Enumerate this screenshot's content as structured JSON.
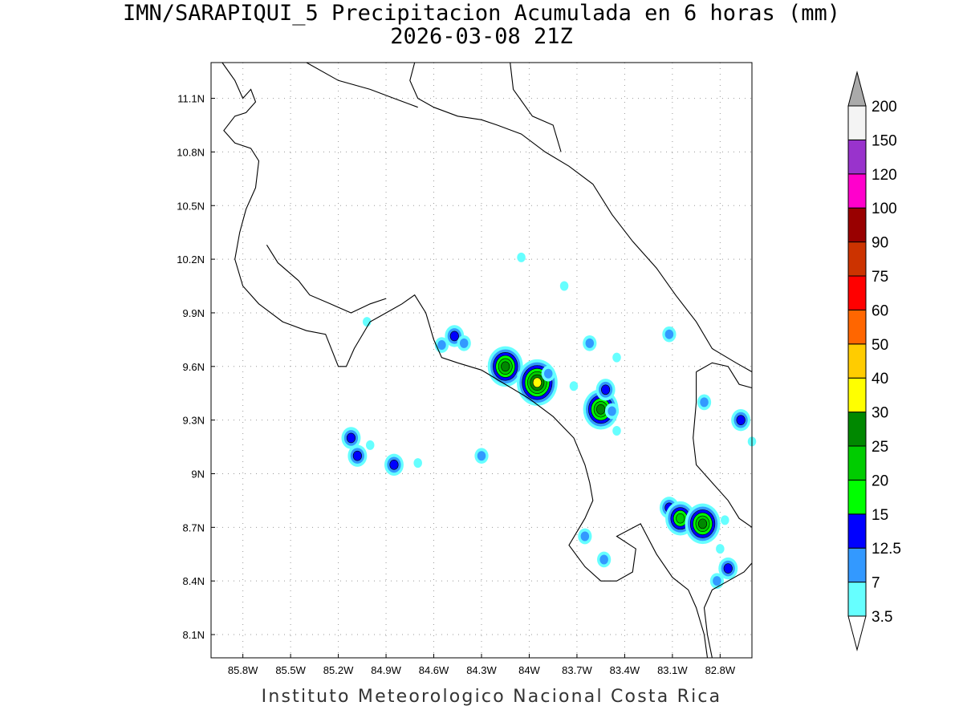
{
  "title": {
    "line1": "IMN/SARAPIQUI_5 Precipitacion Acumulada en 6 horas (mm)",
    "line2": "2026-03-08 21Z"
  },
  "footer": "Instituto Meteorologico Nacional Costa Rica",
  "map": {
    "lon_range": [
      -86.0,
      -82.6
    ],
    "lat_range": [
      7.97,
      11.3
    ],
    "lon_ticks": [
      {
        "v": -85.8,
        "label": "85.8W"
      },
      {
        "v": -85.5,
        "label": "85.5W"
      },
      {
        "v": -85.2,
        "label": "85.2W"
      },
      {
        "v": -84.9,
        "label": "84.9W"
      },
      {
        "v": -84.6,
        "label": "84.6W"
      },
      {
        "v": -84.3,
        "label": "84.3W"
      },
      {
        "v": -84.0,
        "label": "84W"
      },
      {
        "v": -83.7,
        "label": "83.7W"
      },
      {
        "v": -83.4,
        "label": "83.4W"
      },
      {
        "v": -83.1,
        "label": "83.1W"
      },
      {
        "v": -82.8,
        "label": "82.8W"
      }
    ],
    "lat_ticks": [
      {
        "v": 11.1,
        "label": "11.1N"
      },
      {
        "v": 10.8,
        "label": "10.8N"
      },
      {
        "v": 10.5,
        "label": "10.5N"
      },
      {
        "v": 10.2,
        "label": "10.2N"
      },
      {
        "v": 9.9,
        "label": "9.9N"
      },
      {
        "v": 9.6,
        "label": "9.6N"
      },
      {
        "v": 9.3,
        "label": "9.3N"
      },
      {
        "v": 9.0,
        "label": "9N"
      },
      {
        "v": 8.7,
        "label": "8.7N"
      },
      {
        "v": 8.4,
        "label": "8.4N"
      },
      {
        "v": 8.1,
        "label": "8.1N"
      }
    ],
    "grid": "dotted",
    "coastline_color": "#000000",
    "coastlines": [
      [
        [
          -85.93,
          11.3
        ],
        [
          -85.85,
          11.2
        ],
        [
          -85.8,
          11.1
        ],
        [
          -85.75,
          11.15
        ],
        [
          -85.72,
          11.08
        ],
        [
          -85.78,
          11.02
        ],
        [
          -85.85,
          11.0
        ],
        [
          -85.92,
          10.92
        ],
        [
          -85.85,
          10.85
        ],
        [
          -85.75,
          10.82
        ],
        [
          -85.7,
          10.75
        ],
        [
          -85.72,
          10.6
        ],
        [
          -85.78,
          10.48
        ],
        [
          -85.82,
          10.35
        ],
        [
          -85.85,
          10.2
        ],
        [
          -85.8,
          10.05
        ],
        [
          -85.7,
          9.95
        ],
        [
          -85.55,
          9.85
        ],
        [
          -85.4,
          9.8
        ],
        [
          -85.28,
          9.78
        ],
        [
          -85.2,
          9.6
        ],
        [
          -85.15,
          9.6
        ],
        [
          -85.1,
          9.7
        ],
        [
          -85.0,
          9.85
        ],
        [
          -84.9,
          9.9
        ],
        [
          -84.8,
          9.95
        ],
        [
          -84.72,
          10.0
        ],
        [
          -84.65,
          9.9
        ],
        [
          -84.6,
          9.75
        ],
        [
          -84.55,
          9.65
        ],
        [
          -84.45,
          9.62
        ],
        [
          -84.3,
          9.58
        ],
        [
          -84.15,
          9.5
        ],
        [
          -84.0,
          9.42
        ],
        [
          -83.85,
          9.32
        ],
        [
          -83.72,
          9.2
        ],
        [
          -83.65,
          9.05
        ],
        [
          -83.62,
          8.95
        ],
        [
          -83.6,
          8.85
        ],
        [
          -83.65,
          8.75
        ],
        [
          -83.75,
          8.6
        ],
        [
          -83.65,
          8.48
        ],
        [
          -83.55,
          8.4
        ],
        [
          -83.45,
          8.4
        ],
        [
          -83.35,
          8.45
        ],
        [
          -83.33,
          8.58
        ],
        [
          -83.45,
          8.65
        ],
        [
          -83.3,
          8.72
        ],
        [
          -83.2,
          8.55
        ],
        [
          -83.1,
          8.42
        ],
        [
          -83.0,
          8.35
        ],
        [
          -82.95,
          8.25
        ],
        [
          -82.9,
          8.1
        ],
        [
          -82.88,
          7.97
        ]
      ],
      [
        [
          -82.85,
          7.97
        ],
        [
          -82.88,
          8.1
        ],
        [
          -82.9,
          8.25
        ],
        [
          -82.85,
          8.35
        ],
        [
          -82.75,
          8.4
        ],
        [
          -82.65,
          8.45
        ],
        [
          -82.6,
          8.5
        ]
      ],
      [
        [
          -85.65,
          10.28
        ],
        [
          -85.58,
          10.18
        ],
        [
          -85.45,
          10.08
        ],
        [
          -85.38,
          10.0
        ],
        [
          -85.25,
          9.95
        ],
        [
          -85.12,
          9.9
        ],
        [
          -85.0,
          9.95
        ],
        [
          -84.9,
          9.98
        ]
      ],
      [
        [
          -84.72,
          11.3
        ],
        [
          -84.75,
          11.2
        ],
        [
          -84.7,
          11.1
        ],
        [
          -84.6,
          11.05
        ],
        [
          -84.45,
          11.0
        ],
        [
          -84.3,
          10.98
        ],
        [
          -84.2,
          10.95
        ],
        [
          -84.05,
          10.9
        ],
        [
          -83.9,
          10.8
        ],
        [
          -83.75,
          10.72
        ],
        [
          -83.6,
          10.62
        ],
        [
          -83.48,
          10.45
        ],
        [
          -83.35,
          10.3
        ],
        [
          -83.2,
          10.15
        ],
        [
          -83.08,
          10.0
        ],
        [
          -82.95,
          9.85
        ],
        [
          -82.85,
          9.7
        ],
        [
          -82.7,
          9.62
        ],
        [
          -82.6,
          9.57
        ]
      ],
      [
        [
          -84.12,
          11.3
        ],
        [
          -84.1,
          11.15
        ],
        [
          -83.98,
          11.0
        ],
        [
          -83.85,
          10.95
        ],
        [
          -83.8,
          10.8
        ]
      ],
      [
        [
          -85.4,
          11.3
        ],
        [
          -85.2,
          11.2
        ],
        [
          -85.0,
          11.15
        ],
        [
          -84.85,
          11.1
        ],
        [
          -84.7,
          11.05
        ]
      ],
      [
        [
          -82.95,
          9.57
        ],
        [
          -82.85,
          9.62
        ],
        [
          -82.75,
          9.6
        ],
        [
          -82.68,
          9.5
        ],
        [
          -82.6,
          9.48
        ]
      ],
      [
        [
          -82.95,
          9.57
        ],
        [
          -82.95,
          9.4
        ],
        [
          -82.97,
          9.2
        ],
        [
          -82.95,
          9.05
        ],
        [
          -82.85,
          8.95
        ],
        [
          -82.75,
          8.85
        ],
        [
          -82.68,
          8.75
        ],
        [
          -82.6,
          8.7
        ]
      ]
    ],
    "colorbar": {
      "levels": [
        "3.5",
        "7",
        "12.5",
        "15",
        "20",
        "25",
        "30",
        "40",
        "50",
        "60",
        "75",
        "90",
        "100",
        "120",
        "150",
        "200"
      ],
      "colors": [
        "#66ffff",
        "#3399ff",
        "#0000ff",
        "#00ff00",
        "#00cc00",
        "#008800",
        "#ffff00",
        "#ffcc00",
        "#ff6600",
        "#ff0000",
        "#cc3300",
        "#990000",
        "#ff00cc",
        "#9933cc",
        "#f4f4f4"
      ],
      "over_color": "#aaaaaa",
      "under_color": "#ffffff"
    },
    "precip_cells": [
      {
        "lon": -84.05,
        "lat": 10.21,
        "peak": 3.5
      },
      {
        "lon": -83.78,
        "lat": 10.05,
        "peak": 3.5
      },
      {
        "lon": -85.02,
        "lat": 9.85,
        "peak": 3.5
      },
      {
        "lon": -84.47,
        "lat": 9.77,
        "peak": 12.5
      },
      {
        "lon": -84.55,
        "lat": 9.72,
        "peak": 7
      },
      {
        "lon": -84.41,
        "lat": 9.73,
        "peak": 7
      },
      {
        "lon": -83.62,
        "lat": 9.73,
        "peak": 7
      },
      {
        "lon": -83.12,
        "lat": 9.78,
        "peak": 7
      },
      {
        "lon": -83.45,
        "lat": 9.65,
        "peak": 3.5
      },
      {
        "lon": -84.15,
        "lat": 9.6,
        "peak": 25
      },
      {
        "lon": -84.05,
        "lat": 9.55,
        "peak": 3.5
      },
      {
        "lon": -83.95,
        "lat": 9.51,
        "peak": 30
      },
      {
        "lon": -83.88,
        "lat": 9.56,
        "peak": 7
      },
      {
        "lon": -83.72,
        "lat": 9.49,
        "peak": 3.5
      },
      {
        "lon": -83.55,
        "lat": 9.36,
        "peak": 25
      },
      {
        "lon": -83.52,
        "lat": 9.47,
        "peak": 12.5
      },
      {
        "lon": -83.48,
        "lat": 9.35,
        "peak": 7
      },
      {
        "lon": -83.45,
        "lat": 9.24,
        "peak": 3.5
      },
      {
        "lon": -82.9,
        "lat": 9.4,
        "peak": 7
      },
      {
        "lon": -82.67,
        "lat": 9.3,
        "peak": 12.5
      },
      {
        "lon": -82.6,
        "lat": 9.18,
        "peak": 3.5
      },
      {
        "lon": -85.12,
        "lat": 9.2,
        "peak": 12.5
      },
      {
        "lon": -85.08,
        "lat": 9.1,
        "peak": 12.5
      },
      {
        "lon": -85.0,
        "lat": 9.16,
        "peak": 3.5
      },
      {
        "lon": -84.85,
        "lat": 9.05,
        "peak": 12.5
      },
      {
        "lon": -84.7,
        "lat": 9.06,
        "peak": 3.5
      },
      {
        "lon": -84.3,
        "lat": 9.1,
        "peak": 7
      },
      {
        "lon": -83.12,
        "lat": 8.81,
        "peak": 12.5
      },
      {
        "lon": -83.05,
        "lat": 8.75,
        "peak": 20
      },
      {
        "lon": -82.91,
        "lat": 8.72,
        "peak": 25
      },
      {
        "lon": -82.77,
        "lat": 8.74,
        "peak": 3.5
      },
      {
        "lon": -83.65,
        "lat": 8.65,
        "peak": 7
      },
      {
        "lon": -83.53,
        "lat": 8.52,
        "peak": 7
      },
      {
        "lon": -82.75,
        "lat": 8.47,
        "peak": 12.5
      },
      {
        "lon": -82.8,
        "lat": 8.58,
        "peak": 3.5
      },
      {
        "lon": -82.82,
        "lat": 8.4,
        "peak": 7
      }
    ]
  }
}
